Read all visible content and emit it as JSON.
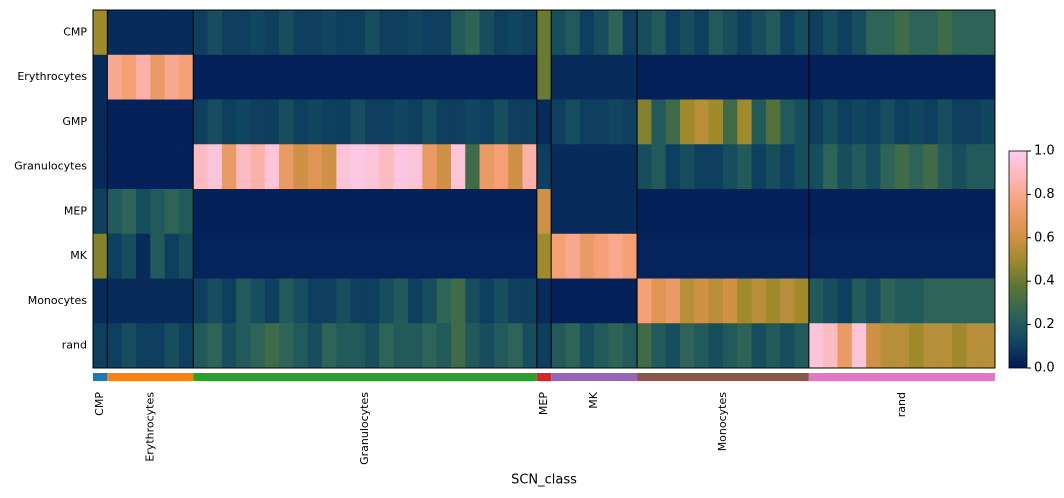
{
  "chart_data": {
    "type": "heatmap",
    "x_label": "SCN_class",
    "rows": [
      "CMP",
      "Erythrocytes",
      "GMP",
      "Granulocytes",
      "MEP",
      "MK",
      "Monocytes",
      "rand"
    ],
    "colormap": [
      "#011959",
      "#114860",
      "#2e6457",
      "#5c7634",
      "#a08a2c",
      "#d9934c",
      "#f59f74",
      "#fdb6b4",
      "#facdf0"
    ],
    "clim": [
      0,
      1
    ],
    "cticks": [
      {
        "value": 0,
        "label": "0.0"
      },
      {
        "value": 0.2,
        "label": "0.2"
      },
      {
        "value": 0.4,
        "label": "0.4"
      },
      {
        "value": 0.6,
        "label": "0.6"
      },
      {
        "value": 0.8,
        "label": "0.8"
      },
      {
        "value": 1,
        "label": "1.0"
      }
    ],
    "groups": [
      {
        "name": "CMP",
        "color": "#1f77b4",
        "values": [
          [
            0.5
          ],
          [
            0.05
          ],
          [
            0.05
          ],
          [
            0.05
          ],
          [
            0.1
          ],
          [
            0.45
          ],
          [
            0.05
          ],
          [
            0.1
          ]
        ]
      },
      {
        "name": "Erythrocytes",
        "color": "#ff7f0e",
        "values": [
          [
            0.05,
            0.05,
            0.05,
            0.05,
            0.05,
            0.05
          ],
          [
            0.8,
            0.75,
            0.85,
            0.7,
            0.8,
            0.75
          ],
          [
            0.02,
            0.02,
            0.02,
            0.02,
            0.02,
            0.02
          ],
          [
            0.02,
            0.02,
            0.02,
            0.02,
            0.02,
            0.02
          ],
          [
            0.2,
            0.25,
            0.15,
            0.2,
            0.25,
            0.2
          ],
          [
            0.1,
            0.15,
            0.05,
            0.2,
            0.1,
            0.15
          ],
          [
            0.05,
            0.05,
            0.05,
            0.05,
            0.05,
            0.05
          ],
          [
            0.1,
            0.15,
            0.1,
            0.1,
            0.15,
            0.1
          ]
        ]
      },
      {
        "name": "Granulocytes",
        "color": "#2ca02c",
        "values": [
          [
            0.1,
            0.15,
            0.1,
            0.1,
            0.12,
            0.1,
            0.15,
            0.1,
            0.1,
            0.12,
            0.1,
            0.1,
            0.15,
            0.1,
            0.1,
            0.12,
            0.1,
            0.1,
            0.2,
            0.25,
            0.15,
            0.1,
            0.12,
            0.1
          ],
          [
            0.02,
            0.02,
            0.02,
            0.02,
            0.02,
            0.02,
            0.02,
            0.02,
            0.02,
            0.02,
            0.02,
            0.02,
            0.02,
            0.02,
            0.02,
            0.02,
            0.02,
            0.02,
            0.02,
            0.02,
            0.02,
            0.02,
            0.02,
            0.02
          ],
          [
            0.1,
            0.15,
            0.1,
            0.12,
            0.1,
            0.1,
            0.15,
            0.1,
            0.12,
            0.1,
            0.1,
            0.15,
            0.1,
            0.1,
            0.12,
            0.1,
            0.15,
            0.1,
            0.1,
            0.12,
            0.1,
            0.15,
            0.1,
            0.1
          ],
          [
            0.9,
            0.95,
            0.7,
            0.9,
            0.85,
            0.95,
            0.7,
            0.6,
            0.65,
            0.6,
            0.95,
            0.97,
            0.95,
            0.9,
            0.97,
            0.95,
            0.7,
            0.6,
            0.95,
            0.3,
            0.7,
            0.75,
            0.6,
            0.85
          ],
          [
            0.02,
            0.02,
            0.02,
            0.02,
            0.02,
            0.02,
            0.02,
            0.02,
            0.02,
            0.02,
            0.02,
            0.02,
            0.02,
            0.02,
            0.02,
            0.02,
            0.02,
            0.02,
            0.02,
            0.02,
            0.02,
            0.02,
            0.02,
            0.02
          ],
          [
            0.03,
            0.03,
            0.03,
            0.03,
            0.03,
            0.03,
            0.03,
            0.03,
            0.03,
            0.03,
            0.03,
            0.03,
            0.03,
            0.03,
            0.03,
            0.03,
            0.03,
            0.03,
            0.03,
            0.03,
            0.03,
            0.03,
            0.03,
            0.03
          ],
          [
            0.1,
            0.15,
            0.1,
            0.2,
            0.15,
            0.1,
            0.2,
            0.15,
            0.1,
            0.1,
            0.15,
            0.1,
            0.1,
            0.15,
            0.2,
            0.1,
            0.15,
            0.25,
            0.3,
            0.15,
            0.1,
            0.15,
            0.1,
            0.1
          ],
          [
            0.2,
            0.25,
            0.15,
            0.2,
            0.25,
            0.3,
            0.25,
            0.2,
            0.15,
            0.25,
            0.2,
            0.2,
            0.15,
            0.25,
            0.2,
            0.2,
            0.25,
            0.2,
            0.3,
            0.2,
            0.15,
            0.2,
            0.25,
            0.15
          ]
        ]
      },
      {
        "name": "MEP",
        "color": "#d62728",
        "values": [
          [
            0.4
          ],
          [
            0.4
          ],
          [
            0.05
          ],
          [
            0.1
          ],
          [
            0.6
          ],
          [
            0.5
          ],
          [
            0.05
          ],
          [
            0.1
          ]
        ]
      },
      {
        "name": "MK",
        "color": "#9467bd",
        "values": [
          [
            0.15,
            0.2,
            0.1,
            0.15,
            0.25,
            0.1
          ],
          [
            0.05,
            0.05,
            0.05,
            0.05,
            0.05,
            0.05
          ],
          [
            0.1,
            0.15,
            0.1,
            0.1,
            0.12,
            0.1
          ],
          [
            0.05,
            0.05,
            0.05,
            0.05,
            0.05,
            0.05
          ],
          [
            0.05,
            0.05,
            0.05,
            0.05,
            0.05,
            0.05
          ],
          [
            0.75,
            0.8,
            0.7,
            0.75,
            0.8,
            0.75
          ],
          [
            0.02,
            0.02,
            0.02,
            0.02,
            0.02,
            0.02
          ],
          [
            0.2,
            0.25,
            0.15,
            0.2,
            0.25,
            0.2
          ]
        ]
      },
      {
        "name": "Monocytes",
        "color": "#8c564b",
        "values": [
          [
            0.15,
            0.2,
            0.1,
            0.15,
            0.1,
            0.2,
            0.15,
            0.1,
            0.15,
            0.2,
            0.1,
            0.15
          ],
          [
            0.02,
            0.02,
            0.02,
            0.02,
            0.02,
            0.02,
            0.02,
            0.02,
            0.02,
            0.02,
            0.02,
            0.02
          ],
          [
            0.45,
            0.2,
            0.3,
            0.5,
            0.55,
            0.5,
            0.3,
            0.5,
            0.2,
            0.35,
            0.2,
            0.15
          ],
          [
            0.15,
            0.2,
            0.1,
            0.15,
            0.1,
            0.1,
            0.15,
            0.2,
            0.1,
            0.15,
            0.1,
            0.15
          ],
          [
            0.02,
            0.02,
            0.02,
            0.02,
            0.02,
            0.02,
            0.02,
            0.02,
            0.02,
            0.02,
            0.02,
            0.02
          ],
          [
            0.03,
            0.03,
            0.03,
            0.03,
            0.03,
            0.03,
            0.03,
            0.03,
            0.03,
            0.03,
            0.03,
            0.03
          ],
          [
            0.75,
            0.65,
            0.7,
            0.55,
            0.6,
            0.55,
            0.6,
            0.5,
            0.55,
            0.5,
            0.55,
            0.5
          ],
          [
            0.3,
            0.2,
            0.15,
            0.25,
            0.2,
            0.15,
            0.2,
            0.25,
            0.15,
            0.2,
            0.15,
            0.2
          ]
        ]
      },
      {
        "name": "rand",
        "color": "#e377c2",
        "values": [
          [
            0.1,
            0.15,
            0.1,
            0.15,
            0.25,
            0.25,
            0.3,
            0.25,
            0.25,
            0.3,
            0.25,
            0.25,
            0.25
          ],
          [
            0.02,
            0.02,
            0.02,
            0.02,
            0.02,
            0.02,
            0.02,
            0.02,
            0.02,
            0.02,
            0.02,
            0.02,
            0.02
          ],
          [
            0.1,
            0.15,
            0.1,
            0.12,
            0.1,
            0.15,
            0.1,
            0.12,
            0.1,
            0.15,
            0.1,
            0.1,
            0.12
          ],
          [
            0.15,
            0.25,
            0.15,
            0.2,
            0.15,
            0.25,
            0.3,
            0.25,
            0.3,
            0.2,
            0.15,
            0.2,
            0.2
          ],
          [
            0.02,
            0.02,
            0.02,
            0.02,
            0.02,
            0.02,
            0.02,
            0.02,
            0.02,
            0.02,
            0.02,
            0.02,
            0.02
          ],
          [
            0.03,
            0.03,
            0.03,
            0.03,
            0.03,
            0.03,
            0.03,
            0.03,
            0.03,
            0.03,
            0.03,
            0.03,
            0.03
          ],
          [
            0.2,
            0.15,
            0.1,
            0.2,
            0.15,
            0.25,
            0.2,
            0.2,
            0.25,
            0.25,
            0.25,
            0.25,
            0.25
          ],
          [
            0.95,
            0.9,
            0.7,
            0.95,
            0.6,
            0.55,
            0.55,
            0.5,
            0.55,
            0.55,
            0.5,
            0.55,
            0.55
          ]
        ]
      }
    ]
  }
}
